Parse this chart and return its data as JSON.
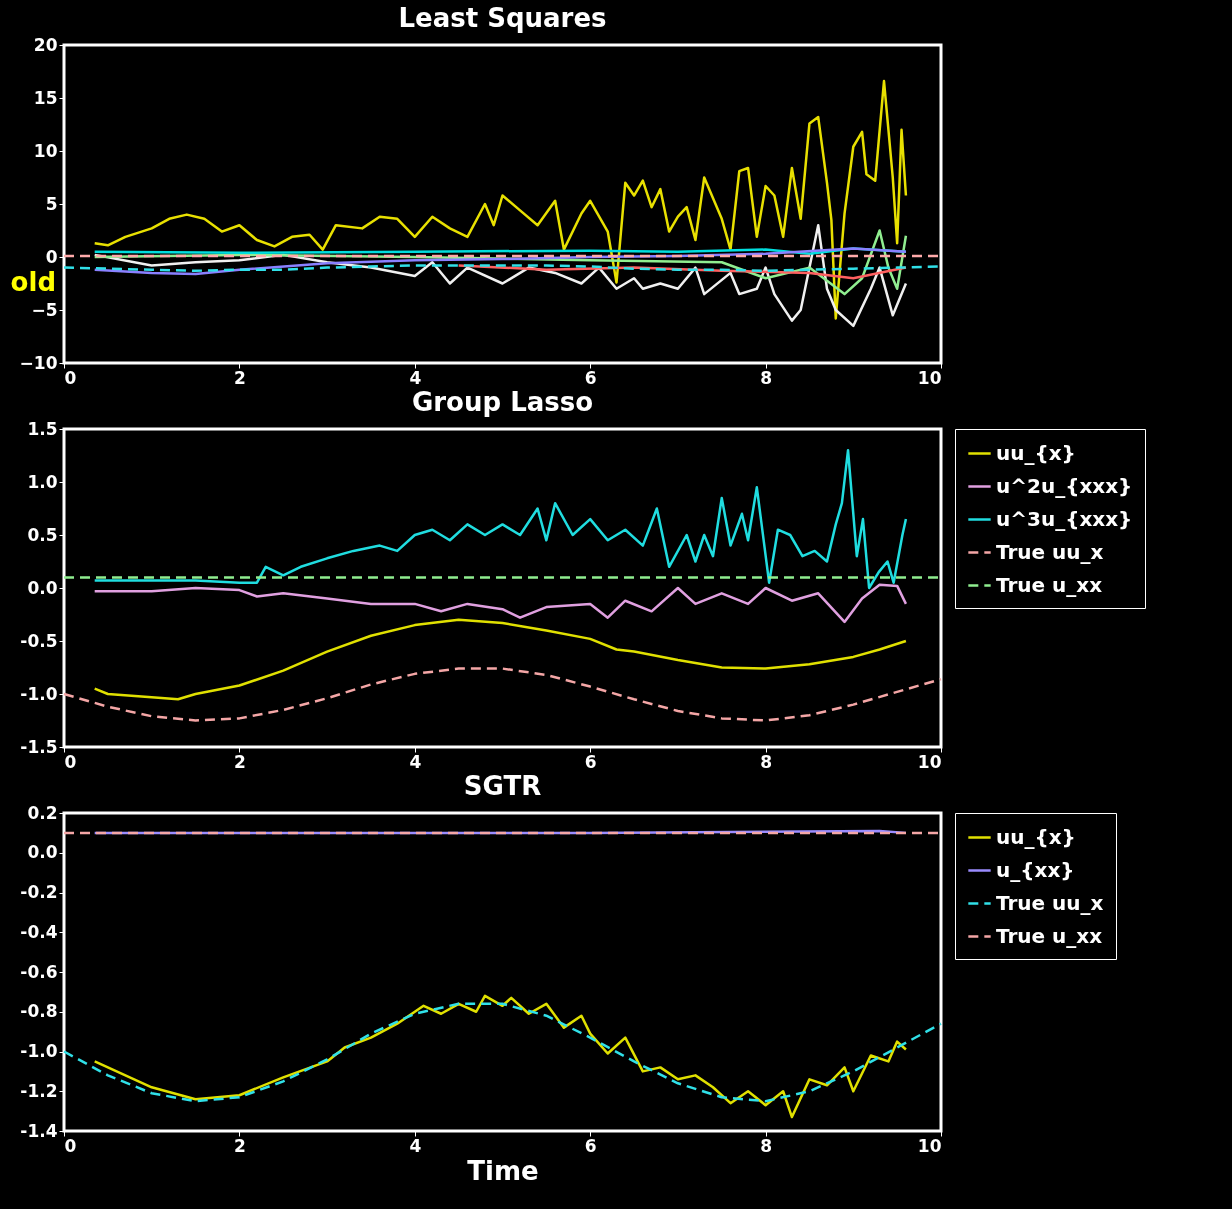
{
  "chart_data": [
    {
      "type": "line",
      "title": "Least Squares",
      "annotations": [
        "old"
      ],
      "xlim": [
        0,
        10
      ],
      "xticks": [
        0,
        2,
        4,
        6,
        8,
        10
      ],
      "ylim": [
        -10,
        20
      ],
      "yticks": [
        -10,
        -5,
        0,
        5,
        10,
        15,
        20
      ],
      "series": [
        {
          "color": "#e8e000",
          "line_style": "solid",
          "x": [
            0.35,
            0.5,
            0.7,
            1.0,
            1.2,
            1.4,
            1.6,
            1.8,
            2.0,
            2.2,
            2.4,
            2.6,
            2.8,
            2.95,
            3.1,
            3.4,
            3.6,
            3.8,
            4.0,
            4.2,
            4.4,
            4.6,
            4.8,
            4.9,
            5.0,
            5.2,
            5.4,
            5.6,
            5.7,
            5.9,
            6.0,
            6.2,
            6.3,
            6.4,
            6.5,
            6.6,
            6.7,
            6.8,
            6.9,
            7.0,
            7.1,
            7.2,
            7.3,
            7.5,
            7.6,
            7.7,
            7.8,
            7.9,
            8.0,
            8.1,
            8.2,
            8.3,
            8.4,
            8.5,
            8.6,
            8.7,
            8.75,
            8.8,
            8.9,
            9.0,
            9.1,
            9.15,
            9.25,
            9.35,
            9.45,
            9.5,
            9.55,
            9.6
          ],
          "values": [
            1.3,
            1.1,
            1.9,
            2.7,
            3.6,
            4.0,
            3.6,
            2.4,
            3.0,
            1.6,
            1.0,
            1.9,
            2.1,
            0.7,
            3.0,
            2.7,
            3.8,
            3.6,
            1.9,
            3.8,
            2.7,
            1.9,
            5.0,
            3.0,
            5.8,
            4.4,
            3.0,
            5.3,
            0.7,
            4.1,
            5.3,
            2.4,
            -2.4,
            7.0,
            5.8,
            7.2,
            4.7,
            6.4,
            2.4,
            3.8,
            4.7,
            1.6,
            7.5,
            3.6,
            0.7,
            8.1,
            8.4,
            1.9,
            6.7,
            5.8,
            1.9,
            8.4,
            3.6,
            12.6,
            13.2,
            7.0,
            3.5,
            -5.8,
            4.1,
            10.4,
            11.8,
            7.8,
            7.2,
            16.6,
            7.5,
            1.3,
            12.0,
            5.8
          ]
        },
        {
          "color": "#f0f0f0",
          "line_style": "solid",
          "x": [
            0.35,
            1.0,
            1.5,
            2.0,
            2.5,
            3.0,
            3.5,
            4.0,
            4.2,
            4.4,
            4.6,
            5.0,
            5.3,
            5.6,
            5.9,
            6.1,
            6.3,
            6.5,
            6.6,
            6.8,
            7.0,
            7.2,
            7.3,
            7.6,
            7.7,
            7.9,
            8.0,
            8.1,
            8.3,
            8.4,
            8.6,
            8.7,
            8.8,
            9.0,
            9.2,
            9.3,
            9.45,
            9.6
          ],
          "values": [
            0.2,
            -0.8,
            -0.5,
            -0.3,
            0.2,
            -0.5,
            -1,
            -1.8,
            -0.5,
            -2.5,
            -1,
            -2.5,
            -1,
            -1.5,
            -2.5,
            -1,
            -3,
            -2,
            -3,
            -2.5,
            -3,
            -1,
            -3.5,
            -1.5,
            -3.5,
            -3,
            -1,
            -3.5,
            -6,
            -5,
            3,
            -3,
            -5,
            -6.5,
            -3,
            -1,
            -5.5,
            -2.5
          ]
        },
        {
          "color": "#90ee90",
          "line_style": "solid",
          "x": [
            0.35,
            2,
            4,
            6,
            7.5,
            8.0,
            8.5,
            8.9,
            9.1,
            9.3,
            9.4,
            9.5,
            9.6
          ],
          "values": [
            0,
            0.2,
            0,
            -0.3,
            -0.5,
            -2,
            -1,
            -3.5,
            -2,
            2.5,
            -1,
            -3,
            2
          ]
        },
        {
          "color": "#00dede",
          "line_style": "solid",
          "x": [
            0.35,
            2,
            4,
            6,
            7,
            8,
            8.5,
            9,
            9.6
          ],
          "values": [
            0.5,
            0.4,
            0.5,
            0.6,
            0.5,
            0.7,
            0.3,
            0.8,
            0.5
          ]
        },
        {
          "color": "#8a80ff",
          "line_style": "solid",
          "x": [
            0.35,
            1,
            1.5,
            2,
            3,
            4,
            5,
            6,
            7,
            8,
            9,
            9.6
          ],
          "values": [
            -1.2,
            -1.5,
            -1.6,
            -1.2,
            -0.6,
            -0.3,
            -0.2,
            0,
            0.1,
            0.3,
            0.8,
            0.5
          ]
        },
        {
          "color": "#ff6060",
          "line_style": "solid",
          "x": [
            4.5,
            5.5,
            6.5,
            7.5,
            8.5,
            9,
            9.6
          ],
          "values": [
            -0.8,
            -1.2,
            -1,
            -1.3,
            -1.5,
            -2,
            -1
          ]
        },
        {
          "color": "#ffaaaa",
          "line_style": "dashed",
          "x": [
            0,
            10
          ],
          "values": [
            0.1,
            0.1
          ]
        },
        {
          "color": "#30e0e8",
          "line_style": "dashed",
          "x": [
            0,
            0.5,
            1,
            1.5,
            2,
            2.5,
            3,
            3.5,
            4,
            4.5,
            5,
            5.5,
            6,
            6.5,
            7,
            7.5,
            8,
            8.5,
            9,
            9.5,
            10
          ],
          "values": [
            -1.0,
            -1.1,
            -1.2,
            -1.3,
            -1.2,
            -1.2,
            -1.0,
            -0.9,
            -0.8,
            -0.8,
            -0.8,
            -0.8,
            -0.9,
            -1.1,
            -1.2,
            -1.2,
            -1.3,
            -1.2,
            -1.1,
            -1.0,
            -0.9
          ]
        }
      ]
    },
    {
      "type": "line",
      "title": "Group Lasso",
      "legend": "right",
      "xlim": [
        0,
        10
      ],
      "xticks": [
        0,
        2,
        4,
        6,
        8,
        10
      ],
      "ylim": [
        -1.5,
        1.5
      ],
      "yticks": [
        {
          "value": -1.5,
          "label": "-1.5"
        },
        {
          "value": -1.0,
          "label": "-1.0"
        },
        {
          "value": -0.5,
          "label": "-0.5"
        },
        {
          "value": 0,
          "label": "0.0"
        },
        {
          "value": 0.5,
          "label": "0.5"
        },
        {
          "value": 1.0,
          "label": "1.0"
        },
        {
          "value": 1.5,
          "label": "1.5"
        }
      ],
      "series": [
        {
          "name": "uu_{x}",
          "color": "#e0e000",
          "line_style": "solid",
          "x": [
            0.35,
            0.5,
            1.0,
            1.3,
            1.5,
            2.0,
            2.5,
            3.0,
            3.5,
            4.0,
            4.5,
            5.0,
            5.5,
            6.0,
            6.3,
            6.5,
            7.0,
            7.5,
            8.0,
            8.5,
            9.0,
            9.3,
            9.6
          ],
          "values": [
            -0.95,
            -1.0,
            -1.03,
            -1.05,
            -1.0,
            -0.92,
            -0.78,
            -0.6,
            -0.45,
            -0.35,
            -0.3,
            -0.33,
            -0.4,
            -0.48,
            -0.58,
            -0.6,
            -0.68,
            -0.75,
            -0.76,
            -0.72,
            -0.65,
            -0.58,
            -0.5
          ]
        },
        {
          "name": "u^2u_{xxx}",
          "color": "#e0a0e0",
          "line_style": "solid",
          "x": [
            0.35,
            1,
            1.5,
            2,
            2.2,
            2.5,
            3,
            3.5,
            4,
            4.3,
            4.6,
            5,
            5.2,
            5.5,
            6,
            6.2,
            6.4,
            6.7,
            7,
            7.2,
            7.5,
            7.8,
            8,
            8.3,
            8.6,
            8.9,
            9.1,
            9.3,
            9.5,
            9.6
          ],
          "values": [
            -0.03,
            -0.03,
            0,
            -0.02,
            -0.08,
            -0.05,
            -0.1,
            -0.15,
            -0.15,
            -0.22,
            -0.15,
            -0.2,
            -0.28,
            -0.18,
            -0.15,
            -0.28,
            -0.12,
            -0.22,
            0,
            -0.15,
            -0.05,
            -0.15,
            0,
            -0.12,
            -0.05,
            -0.32,
            -0.1,
            0.03,
            0.02,
            -0.15
          ]
        },
        {
          "name": "u^3u_{xxx}",
          "color": "#20dde0",
          "line_style": "solid",
          "x": [
            0.35,
            1,
            1.5,
            2,
            2.2,
            2.3,
            2.5,
            2.7,
            3,
            3.3,
            3.6,
            3.8,
            4,
            4.2,
            4.4,
            4.6,
            4.8,
            5.0,
            5.2,
            5.4,
            5.5,
            5.6,
            5.8,
            6.0,
            6.2,
            6.4,
            6.6,
            6.76,
            6.9,
            7.1,
            7.2,
            7.3,
            7.4,
            7.5,
            7.6,
            7.73,
            7.8,
            7.9,
            8.04,
            8.14,
            8.28,
            8.42,
            8.56,
            8.7,
            8.8,
            8.87,
            8.94,
            9.04,
            9.11,
            9.18,
            9.29,
            9.39,
            9.46,
            9.56,
            9.6
          ],
          "values": [
            0.07,
            0.07,
            0.07,
            0.05,
            0.05,
            0.2,
            0.12,
            0.2,
            0.28,
            0.35,
            0.4,
            0.35,
            0.5,
            0.55,
            0.45,
            0.6,
            0.5,
            0.6,
            0.5,
            0.75,
            0.45,
            0.8,
            0.5,
            0.65,
            0.45,
            0.55,
            0.4,
            0.75,
            0.2,
            0.5,
            0.25,
            0.5,
            0.3,
            0.85,
            0.4,
            0.7,
            0.45,
            0.95,
            0.05,
            0.55,
            0.5,
            0.3,
            0.35,
            0.25,
            0.6,
            0.8,
            1.3,
            0.3,
            0.65,
            0.0,
            0.15,
            0.25,
            0.05,
            0.5,
            0.65
          ]
        },
        {
          "name": "True uu_x",
          "color": "#f4a6a6",
          "line_style": "dashed",
          "x": [
            0,
            0.5,
            1,
            1.5,
            2,
            2.5,
            3,
            3.5,
            4,
            4.5,
            5,
            5.5,
            6,
            6.5,
            7,
            7.5,
            8,
            8.5,
            9,
            9.5,
            10
          ],
          "values": [
            -1.0,
            -1.12,
            -1.21,
            -1.25,
            -1.23,
            -1.15,
            -1.04,
            -0.91,
            -0.81,
            -0.76,
            -0.76,
            -0.82,
            -0.93,
            -1.05,
            -1.16,
            -1.23,
            -1.25,
            -1.2,
            -1.1,
            -0.98,
            -0.86
          ]
        },
        {
          "name": "True u_xx",
          "color": "#90ee90",
          "line_style": "dashed",
          "x": [
            0,
            10
          ],
          "values": [
            0.1,
            0.1
          ]
        }
      ]
    },
    {
      "type": "line",
      "title": "SGTR",
      "xlabel": "Time",
      "legend": "right",
      "xlim": [
        0,
        10
      ],
      "xticks": [
        0,
        2,
        4,
        6,
        8,
        10
      ],
      "ylim": [
        -1.4,
        0.2
      ],
      "yticks": [
        {
          "value": -1.4,
          "label": "-1.4"
        },
        {
          "value": -1.2,
          "label": "-1.2"
        },
        {
          "value": -1.0,
          "label": "-1.0"
        },
        {
          "value": -0.8,
          "label": "-0.8"
        },
        {
          "value": -0.6,
          "label": "-0.6"
        },
        {
          "value": -0.4,
          "label": "-0.4"
        },
        {
          "value": -0.2,
          "label": "-0.2"
        },
        {
          "value": 0,
          "label": "0.0"
        },
        {
          "value": 0.2,
          "label": "0.2"
        }
      ],
      "series": [
        {
          "name": "uu_{x}",
          "color": "#e0e000",
          "line_style": "solid",
          "x": [
            0.35,
            1,
            1.5,
            2,
            2.5,
            3,
            3.2,
            3.5,
            3.8,
            4.0,
            4.1,
            4.3,
            4.5,
            4.7,
            4.8,
            5.0,
            5.1,
            5.3,
            5.5,
            5.7,
            5.9,
            6.0,
            6.2,
            6.4,
            6.6,
            6.8,
            7.0,
            7.2,
            7.4,
            7.6,
            7.8,
            8.0,
            8.2,
            8.3,
            8.5,
            8.7,
            8.9,
            9.0,
            9.2,
            9.4,
            9.5,
            9.6
          ],
          "values": [
            -1.05,
            -1.18,
            -1.24,
            -1.22,
            -1.13,
            -1.05,
            -0.98,
            -0.93,
            -0.86,
            -0.8,
            -0.77,
            -0.81,
            -0.76,
            -0.8,
            -0.72,
            -0.77,
            -0.73,
            -0.81,
            -0.76,
            -0.88,
            -0.82,
            -0.91,
            -1.01,
            -0.93,
            -1.1,
            -1.08,
            -1.14,
            -1.12,
            -1.18,
            -1.26,
            -1.2,
            -1.27,
            -1.2,
            -1.33,
            -1.14,
            -1.17,
            -1.08,
            -1.2,
            -1.02,
            -1.05,
            -0.95,
            -0.99
          ]
        },
        {
          "name": "u_{xx}",
          "color": "#9b8cff",
          "line_style": "solid",
          "x": [
            0.35,
            3,
            6,
            9.3,
            9.6
          ],
          "values": [
            0.1,
            0.1,
            0.1,
            0.11,
            0.1
          ]
        },
        {
          "name": "True uu_x",
          "color": "#30e0e8",
          "line_style": "dashed",
          "x": [
            0,
            0.5,
            1,
            1.5,
            2,
            2.5,
            3,
            3.5,
            4,
            4.5,
            5,
            5.5,
            6,
            6.5,
            7,
            7.5,
            8,
            8.5,
            9,
            9.5,
            10
          ],
          "values": [
            -1.0,
            -1.12,
            -1.21,
            -1.25,
            -1.23,
            -1.15,
            -1.04,
            -0.91,
            -0.81,
            -0.76,
            -0.76,
            -0.82,
            -0.93,
            -1.05,
            -1.16,
            -1.23,
            -1.25,
            -1.2,
            -1.1,
            -0.98,
            -0.86
          ]
        },
        {
          "name": "True u_xx",
          "color": "#f4a6a6",
          "line_style": "dashed",
          "x": [
            0,
            10
          ],
          "values": [
            0.1,
            0.1
          ]
        }
      ]
    }
  ]
}
